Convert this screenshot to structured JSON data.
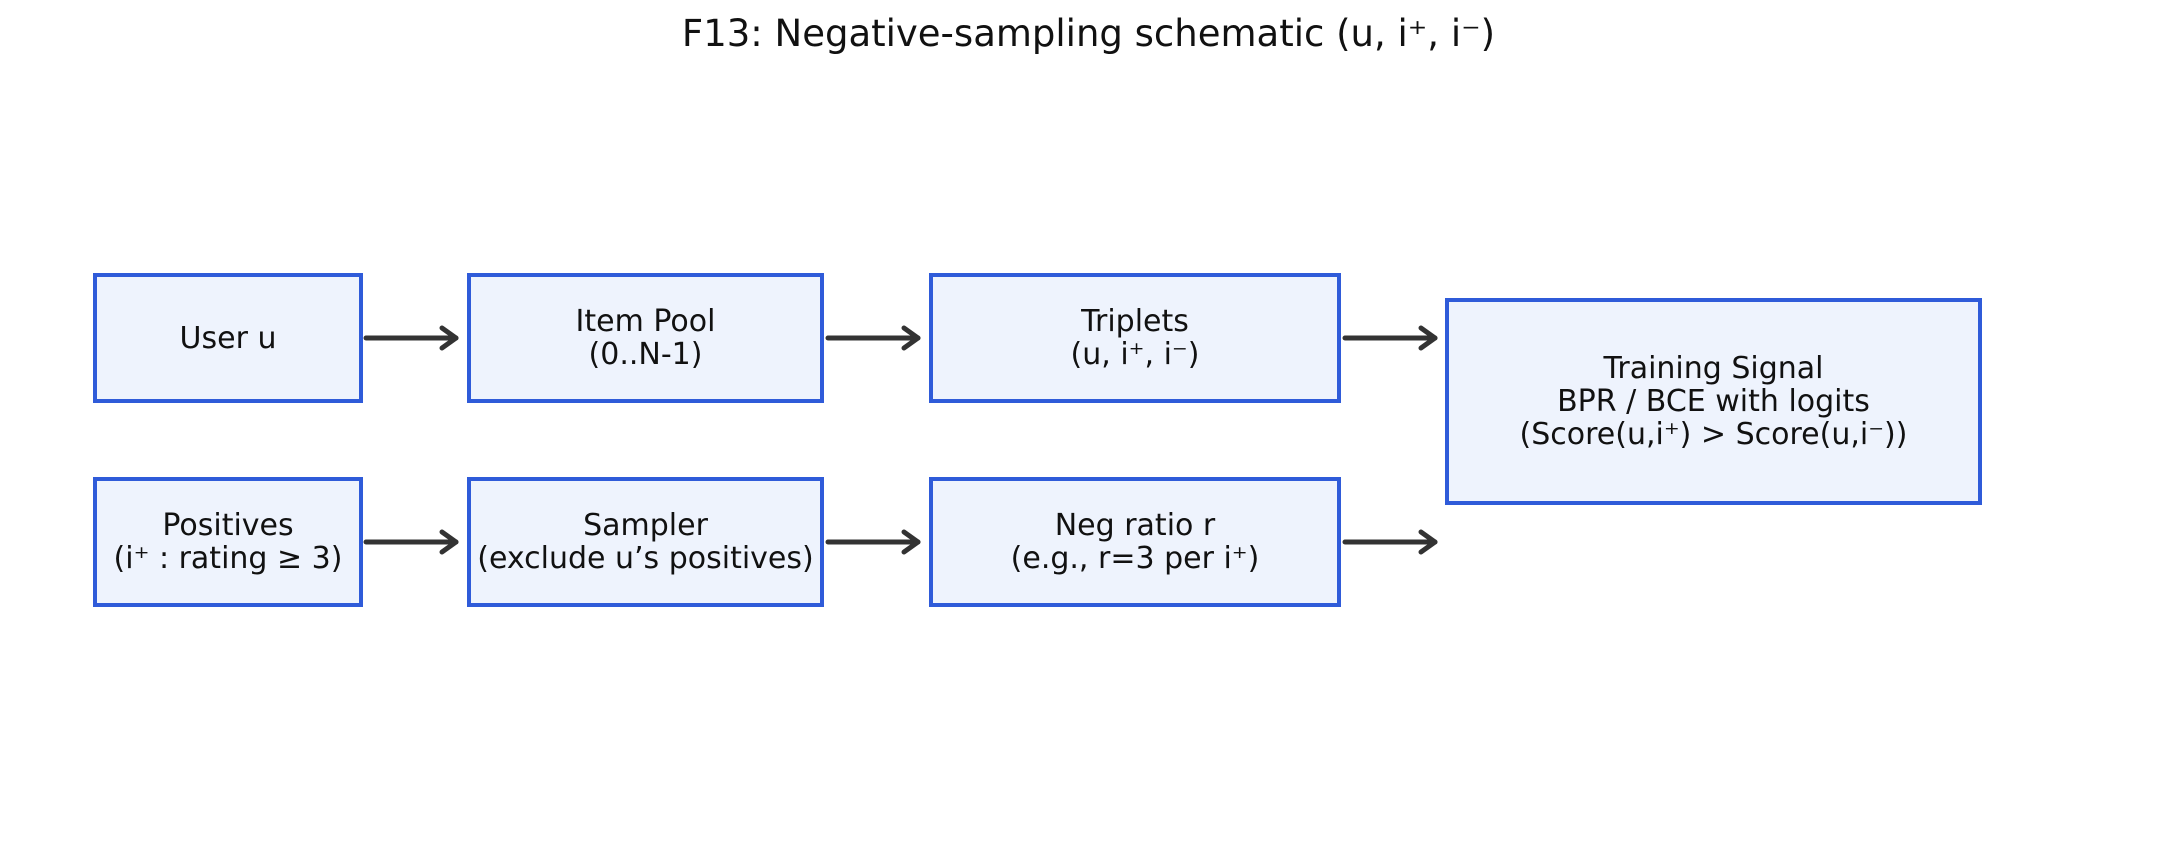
{
  "title": "F13: Negative-sampling schematic (u, i⁺, i⁻)",
  "nodes": {
    "user": {
      "lines": [
        "User u"
      ]
    },
    "item_pool": {
      "lines": [
        "Item Pool",
        "(0..N-1)"
      ]
    },
    "triplets": {
      "lines": [
        "Triplets",
        "(u, i⁺, i⁻)"
      ]
    },
    "positives": {
      "lines": [
        "Positives",
        "(i⁺ : rating ≥ 3)"
      ]
    },
    "sampler": {
      "lines": [
        "Sampler",
        "(exclude u’s positives)"
      ]
    },
    "neg_ratio": {
      "lines": [
        "Neg ratio r",
        "(e.g., r=3 per i⁺)"
      ]
    },
    "training_signal": {
      "lines": [
        "Training Signal",
        "BPR / BCE with logits",
        "(Score(u,i⁺) > Score(u,i⁻))"
      ]
    }
  },
  "edges": [
    {
      "from": "user",
      "to": "item_pool"
    },
    {
      "from": "item_pool",
      "to": "triplets"
    },
    {
      "from": "triplets",
      "to": "training_signal"
    },
    {
      "from": "positives",
      "to": "sampler"
    },
    {
      "from": "sampler",
      "to": "neg_ratio"
    },
    {
      "from": "neg_ratio",
      "to": "training_signal"
    }
  ],
  "colors": {
    "box_fill": "#eef3fd",
    "box_border": "#2f5bd9",
    "arrow": "#333333",
    "text": "#111111"
  }
}
